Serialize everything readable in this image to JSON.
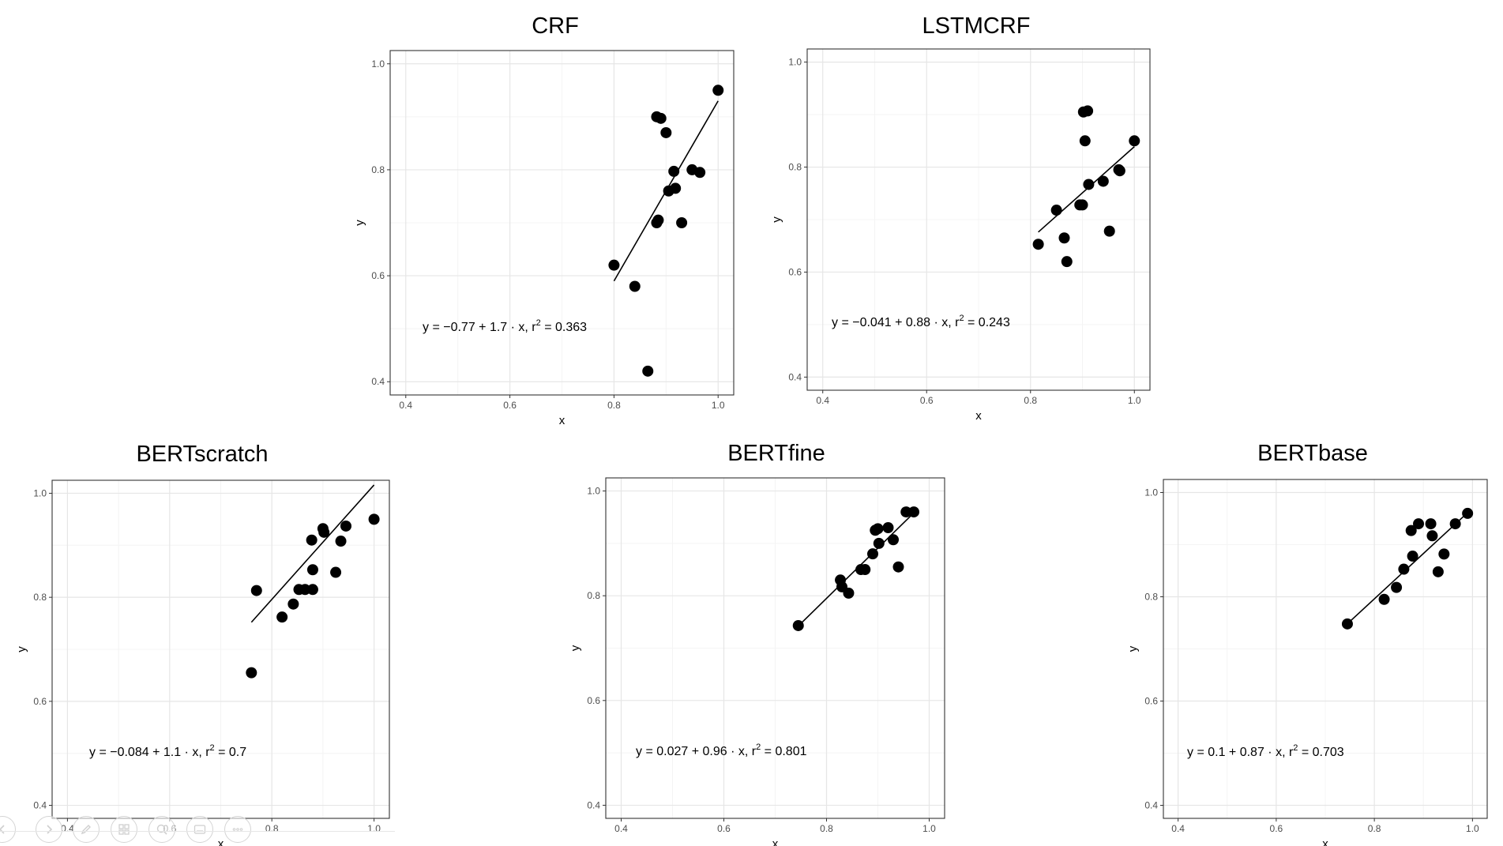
{
  "charts": [
    {
      "name": "crf",
      "title": "CRF",
      "formula": {
        "pre": "y = −0.77 + 1.7 · x,  r",
        "sup": "2",
        "post": " = 0.363"
      },
      "chart_data": {
        "type": "scatter",
        "title": "CRF",
        "xlabel": "x",
        "ylabel": "y",
        "xlim": [
          0.37,
          1.03
        ],
        "ylim": [
          0.375,
          1.025
        ],
        "xticks": [
          "0.4",
          "0.6",
          "0.8",
          "1.0"
        ],
        "yticks": [
          "0.4",
          "0.6",
          "0.8",
          "1.0"
        ],
        "grid": true,
        "points": [
          [
            0.8,
            0.62
          ],
          [
            0.84,
            0.58
          ],
          [
            0.865,
            0.42
          ],
          [
            0.882,
            0.7
          ],
          [
            0.885,
            0.705
          ],
          [
            0.882,
            0.9
          ],
          [
            0.89,
            0.897
          ],
          [
            0.9,
            0.87
          ],
          [
            0.905,
            0.76
          ],
          [
            0.915,
            0.797
          ],
          [
            0.918,
            0.765
          ],
          [
            0.93,
            0.7
          ],
          [
            0.95,
            0.8
          ],
          [
            0.965,
            0.795
          ],
          [
            1.0,
            0.95
          ]
        ],
        "fit": {
          "intercept": -0.77,
          "slope": 1.7,
          "r2": 0.363,
          "x_range": [
            0.8,
            1.0
          ]
        }
      }
    },
    {
      "name": "lstmcrf",
      "title": "LSTMCRF",
      "formula": {
        "pre": "y = −0.041 + 0.88 · x,  r",
        "sup": "2",
        "post": " = 0.243"
      },
      "chart_data": {
        "type": "scatter",
        "title": "LSTMCRF",
        "xlabel": "x",
        "ylabel": "y",
        "xlim": [
          0.37,
          1.03
        ],
        "ylim": [
          0.375,
          1.025
        ],
        "xticks": [
          "0.4",
          "0.6",
          "0.8",
          "1.0"
        ],
        "yticks": [
          "0.4",
          "0.6",
          "0.8",
          "1.0"
        ],
        "grid": true,
        "points": [
          [
            0.815,
            0.653
          ],
          [
            0.85,
            0.718
          ],
          [
            0.865,
            0.665
          ],
          [
            0.87,
            0.62
          ],
          [
            0.895,
            0.728
          ],
          [
            0.9,
            0.728
          ],
          [
            0.902,
            0.905
          ],
          [
            0.905,
            0.85
          ],
          [
            0.91,
            0.907
          ],
          [
            0.912,
            0.767
          ],
          [
            0.94,
            0.773
          ],
          [
            0.952,
            0.678
          ],
          [
            0.97,
            0.795
          ],
          [
            0.972,
            0.793
          ],
          [
            1.0,
            0.85
          ]
        ],
        "fit": {
          "intercept": -0.041,
          "slope": 0.88,
          "r2": 0.243,
          "x_range": [
            0.815,
            1.0
          ]
        }
      }
    },
    {
      "name": "bertscratch",
      "title": "BERTscratch",
      "formula": {
        "pre": "y = −0.084 + 1.1 · x,  r",
        "sup": "2",
        "post": " = 0.7"
      },
      "chart_data": {
        "type": "scatter",
        "title": "BERTscratch",
        "xlabel": "x",
        "ylabel": "y",
        "xlim": [
          0.37,
          1.03
        ],
        "ylim": [
          0.375,
          1.025
        ],
        "xticks": [
          "0.4",
          "0.6",
          "0.8",
          "1.0"
        ],
        "yticks": [
          "0.4",
          "0.6",
          "0.8",
          "1.0"
        ],
        "grid": true,
        "points": [
          [
            0.76,
            0.655
          ],
          [
            0.77,
            0.813
          ],
          [
            0.82,
            0.762
          ],
          [
            0.842,
            0.787
          ],
          [
            0.853,
            0.815
          ],
          [
            0.865,
            0.815
          ],
          [
            0.88,
            0.815
          ],
          [
            0.878,
            0.91
          ],
          [
            0.88,
            0.853
          ],
          [
            0.9,
            0.932
          ],
          [
            0.902,
            0.925
          ],
          [
            0.925,
            0.848
          ],
          [
            0.935,
            0.908
          ],
          [
            0.945,
            0.937
          ],
          [
            1.0,
            0.95
          ]
        ],
        "fit": {
          "intercept": -0.084,
          "slope": 1.1,
          "r2": 0.7,
          "x_range": [
            0.76,
            1.0
          ]
        }
      }
    },
    {
      "name": "bertfine",
      "title": "BERTfine",
      "formula": {
        "pre": "y = 0.027 + 0.96 · x,  r",
        "sup": "2",
        "post": " = 0.801"
      },
      "chart_data": {
        "type": "scatter",
        "title": "BERTfine",
        "xlabel": "x",
        "ylabel": "y",
        "xlim": [
          0.37,
          1.03
        ],
        "ylim": [
          0.375,
          1.025
        ],
        "xticks": [
          "0.4",
          "0.6",
          "0.8",
          "1.0"
        ],
        "yticks": [
          "0.4",
          "0.6",
          "0.8",
          "1.0"
        ],
        "grid": true,
        "points": [
          [
            0.745,
            0.743
          ],
          [
            0.827,
            0.83
          ],
          [
            0.83,
            0.817
          ],
          [
            0.843,
            0.805
          ],
          [
            0.867,
            0.85
          ],
          [
            0.875,
            0.85
          ],
          [
            0.89,
            0.88
          ],
          [
            0.895,
            0.925
          ],
          [
            0.9,
            0.928
          ],
          [
            0.902,
            0.9
          ],
          [
            0.92,
            0.93
          ],
          [
            0.93,
            0.907
          ],
          [
            0.94,
            0.855
          ],
          [
            0.955,
            0.96
          ],
          [
            0.97,
            0.96
          ]
        ],
        "fit": {
          "intercept": 0.027,
          "slope": 0.96,
          "r2": 0.801,
          "x_range": [
            0.745,
            0.97
          ]
        }
      }
    },
    {
      "name": "bertbase",
      "title": "BERTbase",
      "formula": {
        "pre": "y = 0.1 + 0.87 · x,  r",
        "sup": "2",
        "post": " = 0.703"
      },
      "chart_data": {
        "type": "scatter",
        "title": "BERTbase",
        "xlabel": "x",
        "ylabel": "y",
        "xlim": [
          0.37,
          1.03
        ],
        "ylim": [
          0.375,
          1.025
        ],
        "xticks": [
          "0.4",
          "0.6",
          "0.8",
          "1.0"
        ],
        "yticks": [
          "0.4",
          "0.6",
          "0.8",
          "1.0"
        ],
        "grid": true,
        "points": [
          [
            0.745,
            0.748
          ],
          [
            0.82,
            0.795
          ],
          [
            0.845,
            0.818
          ],
          [
            0.86,
            0.853
          ],
          [
            0.875,
            0.927
          ],
          [
            0.878,
            0.878
          ],
          [
            0.89,
            0.94
          ],
          [
            0.915,
            0.94
          ],
          [
            0.918,
            0.917
          ],
          [
            0.93,
            0.848
          ],
          [
            0.942,
            0.882
          ],
          [
            0.965,
            0.94
          ],
          [
            0.99,
            0.96
          ]
        ],
        "fit": {
          "intercept": 0.1,
          "slope": 0.87,
          "r2": 0.703,
          "x_range": [
            0.745,
            0.99
          ]
        }
      }
    }
  ],
  "nav_icons": [
    "prev-slide-icon",
    "next-slide-icon",
    "pen-icon",
    "slides-grid-icon",
    "zoom-icon",
    "subtitles-icon",
    "more-options-icon"
  ]
}
